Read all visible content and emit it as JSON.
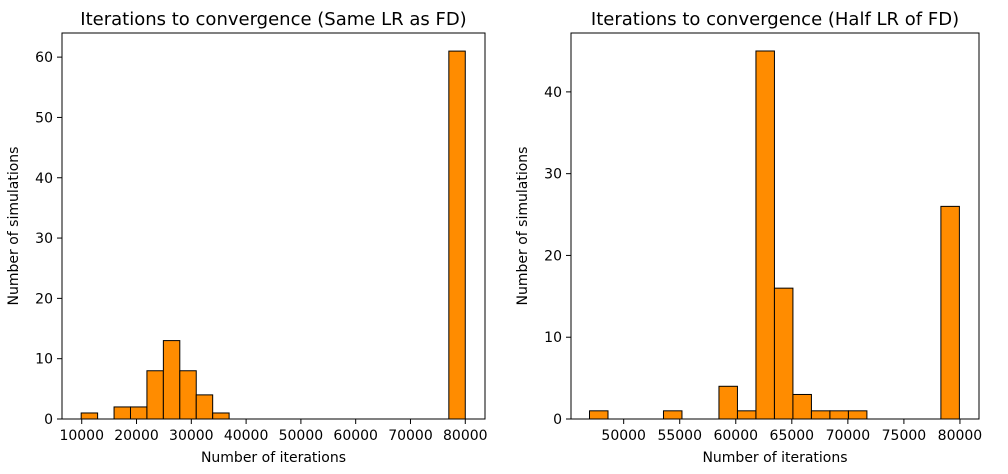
{
  "chart_data": [
    {
      "type": "bar",
      "title": "Iterations to convergence (Same LR as FD)",
      "xlabel": "Number of iterations",
      "ylabel": "Number of simulations",
      "xlim": [
        6400,
        83600
      ],
      "ylim": [
        0,
        64
      ],
      "xticks": [
        10000,
        20000,
        30000,
        40000,
        50000,
        60000,
        70000,
        80000
      ],
      "yticks": [
        0,
        10,
        20,
        30,
        40,
        50,
        60
      ],
      "bar_color": "#ff8c00",
      "edge_color": "#000000",
      "bins": [
        {
          "start": 9900,
          "end": 12900,
          "count": 1
        },
        {
          "start": 12900,
          "end": 15900,
          "count": 0
        },
        {
          "start": 15900,
          "end": 18900,
          "count": 2
        },
        {
          "start": 18900,
          "end": 21900,
          "count": 2
        },
        {
          "start": 21900,
          "end": 24900,
          "count": 8
        },
        {
          "start": 24900,
          "end": 27900,
          "count": 13
        },
        {
          "start": 27900,
          "end": 30900,
          "count": 8
        },
        {
          "start": 30900,
          "end": 33900,
          "count": 4
        },
        {
          "start": 33900,
          "end": 36900,
          "count": 1
        },
        {
          "start": 77000,
          "end": 80000,
          "count": 61
        }
      ]
    },
    {
      "type": "bar",
      "title": "Iterations to convergence (Half LR of FD)",
      "xlabel": "Number of iterations",
      "ylabel": "Number of simulations",
      "xlim": [
        45300,
        81700
      ],
      "ylim": [
        0,
        47.2
      ],
      "xticks": [
        50000,
        55000,
        60000,
        65000,
        70000,
        75000,
        80000
      ],
      "yticks": [
        0,
        10,
        20,
        30,
        40
      ],
      "bar_color": "#ff8c00",
      "edge_color": "#000000",
      "bins": [
        {
          "start": 46950,
          "end": 48600,
          "count": 1
        },
        {
          "start": 53550,
          "end": 55200,
          "count": 1
        },
        {
          "start": 58500,
          "end": 60150,
          "count": 4
        },
        {
          "start": 60150,
          "end": 61800,
          "count": 1
        },
        {
          "start": 61800,
          "end": 63450,
          "count": 45
        },
        {
          "start": 63450,
          "end": 65100,
          "count": 16
        },
        {
          "start": 65100,
          "end": 66750,
          "count": 3
        },
        {
          "start": 66750,
          "end": 68400,
          "count": 1
        },
        {
          "start": 68400,
          "end": 70050,
          "count": 1
        },
        {
          "start": 70050,
          "end": 71700,
          "count": 1
        },
        {
          "start": 78300,
          "end": 79950,
          "count": 26
        }
      ]
    }
  ]
}
